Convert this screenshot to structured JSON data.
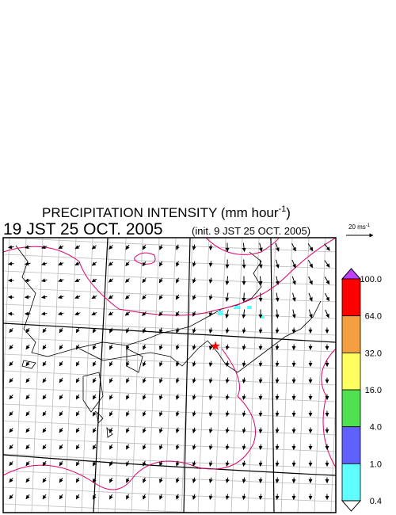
{
  "title": {
    "text": "PRECIPITATION INTENSITY (mm hour",
    "exponent": "-1",
    "close": ")"
  },
  "valid_time": "19 JST 25 OCT. 2005",
  "init_time": "(init. 9 JST 25 OCT. 2005)",
  "wind_scale": {
    "text": "20 ms",
    "exponent": "-1"
  },
  "colorbar": {
    "labels": [
      "100.0",
      "64.0",
      "32.0",
      "16.0",
      "4.0",
      "1.0",
      "0.4"
    ],
    "colors": [
      "#ff0000",
      "#f4a040",
      "#ffff60",
      "#50e050",
      "#6060ff",
      "#60ffff"
    ],
    "over_color": "#c040ff",
    "under_color": "#ffffff"
  }
}
